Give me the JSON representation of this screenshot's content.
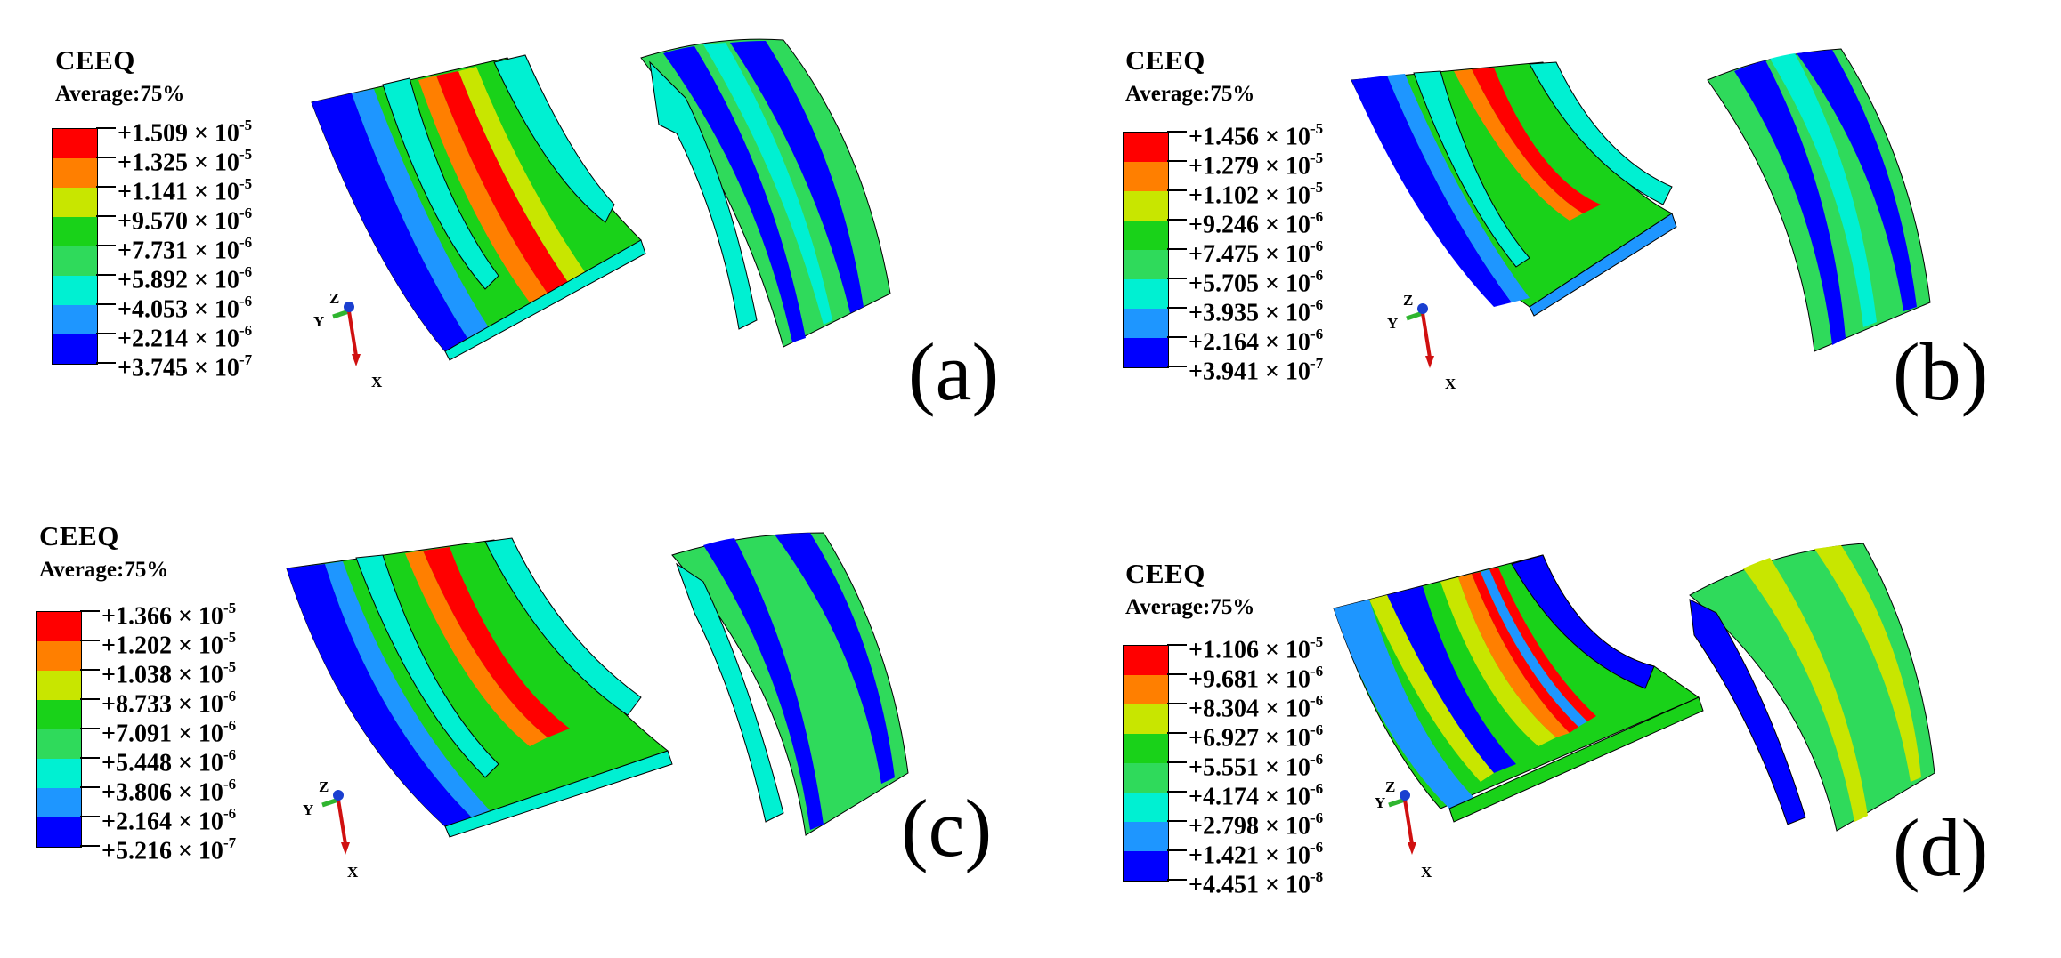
{
  "colors": [
    "#ff0000",
    "#ff7f00",
    "#c8e600",
    "#19d219",
    "#2fda5b",
    "#00f0d2",
    "#1e96ff",
    "#0000ff"
  ],
  "panels": [
    {
      "label": "(a)",
      "legend": {
        "title": "CEEQ",
        "average": "Average:75%",
        "values": [
          {
            "m": "+1.509",
            "e": "-5"
          },
          {
            "m": "+1.325",
            "e": "-5"
          },
          {
            "m": "+1.141",
            "e": "-5"
          },
          {
            "m": "+9.570",
            "e": "-6"
          },
          {
            "m": "+7.731",
            "e": "-6"
          },
          {
            "m": "+5.892",
            "e": "-6"
          },
          {
            "m": "+4.053",
            "e": "-6"
          },
          {
            "m": "+2.214",
            "e": "-6"
          },
          {
            "m": "+3.745",
            "e": "-7"
          }
        ]
      },
      "axes": {
        "z": "Z",
        "y": "Y",
        "x": "X"
      }
    },
    {
      "label": "(b)",
      "legend": {
        "title": "CEEQ",
        "average": "Average:75%",
        "values": [
          {
            "m": "+1.456",
            "e": "-5"
          },
          {
            "m": "+1.279",
            "e": "-5"
          },
          {
            "m": "+1.102",
            "e": "-5"
          },
          {
            "m": "+9.246",
            "e": "-6"
          },
          {
            "m": "+7.475",
            "e": "-6"
          },
          {
            "m": "+5.705",
            "e": "-6"
          },
          {
            "m": "+3.935",
            "e": "-6"
          },
          {
            "m": "+2.164",
            "e": "-6"
          },
          {
            "m": "+3.941",
            "e": "-7"
          }
        ]
      },
      "axes": {
        "z": "Z",
        "y": "Y",
        "x": "X"
      }
    },
    {
      "label": "(c)",
      "legend": {
        "title": "CEEQ",
        "average": "Average:75%",
        "values": [
          {
            "m": "+1.366",
            "e": "-5"
          },
          {
            "m": "+1.202",
            "e": "-5"
          },
          {
            "m": "+1.038",
            "e": "-5"
          },
          {
            "m": "+8.733",
            "e": "-6"
          },
          {
            "m": "+7.091",
            "e": "-6"
          },
          {
            "m": "+5.448",
            "e": "-6"
          },
          {
            "m": "+3.806",
            "e": "-6"
          },
          {
            "m": "+2.164",
            "e": "-6"
          },
          {
            "m": "+5.216",
            "e": "-7"
          }
        ]
      },
      "axes": {
        "z": "Z",
        "y": "Y",
        "x": "X"
      }
    },
    {
      "label": "(d)",
      "legend": {
        "title": "CEEQ",
        "average": "Average:75%",
        "values": [
          {
            "m": "+1.106",
            "e": "-5"
          },
          {
            "m": "+9.681",
            "e": "-6"
          },
          {
            "m": "+8.304",
            "e": "-6"
          },
          {
            "m": "+6.927",
            "e": "-6"
          },
          {
            "m": "+5.551",
            "e": "-6"
          },
          {
            "m": "+4.174",
            "e": "-6"
          },
          {
            "m": "+2.798",
            "e": "-6"
          },
          {
            "m": "+1.421",
            "e": "-6"
          },
          {
            "m": "+4.451",
            "e": "-8"
          }
        ]
      },
      "axes": {
        "z": "Z",
        "y": "Y",
        "x": "X"
      }
    }
  ]
}
